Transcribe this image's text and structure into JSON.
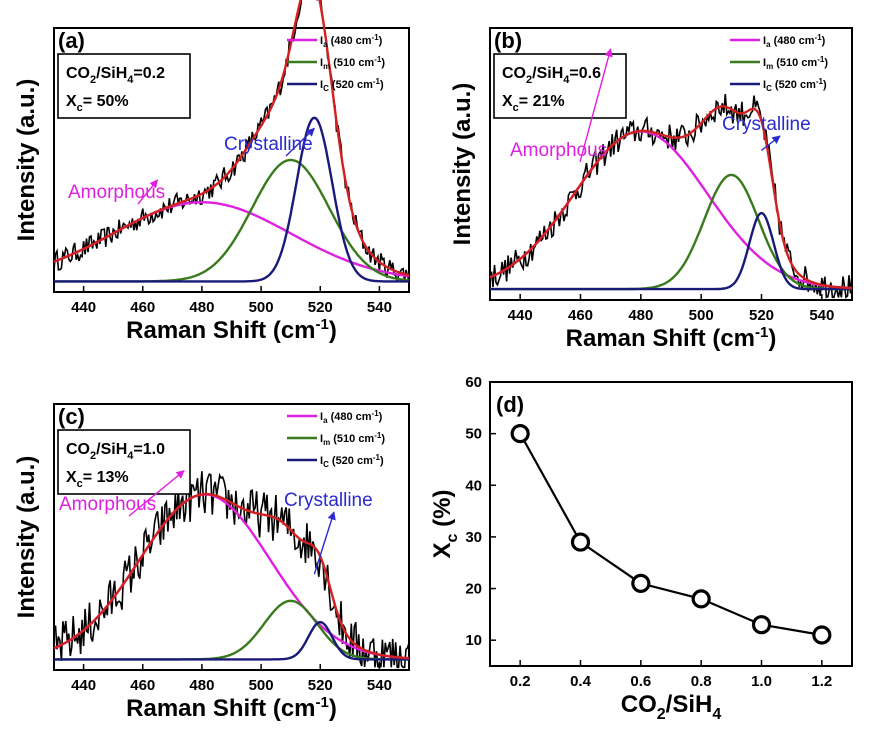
{
  "chart_data": [
    {
      "id": "a",
      "type": "line",
      "panel_label": "(a)",
      "xlabel": "Raman Shift (cm",
      "xlabel_sup": "-1",
      "xlabel_end": ")",
      "ylabel": "Intensity (a.u.)",
      "xlim": [
        430,
        550
      ],
      "xticks": [
        440,
        460,
        480,
        500,
        520,
        540
      ],
      "info": {
        "line1_pre": "CO",
        "line1_sub": "2",
        "line1_mid": "/SiH",
        "line1_sub2": "4",
        "line1_post": "=0.2",
        "line2_pre": "X",
        "line2_sub": "c",
        "line2_post": "= 50%"
      },
      "legend": [
        {
          "label": "I",
          "sub": "a",
          "rest": " (480 cm",
          "sup": "-1",
          "end": ")",
          "color": "#e020e0"
        },
        {
          "label": "I",
          "sub": "m",
          "rest": " (510 cm",
          "sup": "-1",
          "end": ")",
          "color": "#3a7a1e"
        },
        {
          "label": "I",
          "sub": "C",
          "rest": " (520 cm",
          "sup": "-1",
          "end": ")",
          "color": "#1a1a7a"
        }
      ],
      "annotations": {
        "amorphous": "Amorphous",
        "crystalline": "Crystalline"
      },
      "ylim": [
        0,
        100
      ],
      "peaks": {
        "amorphous": {
          "center": 480,
          "height": 30,
          "width": 30
        },
        "intermediate": {
          "center": 510,
          "height": 46,
          "width": 13
        },
        "crystalline": {
          "center": 518,
          "height": 62,
          "width": 6
        }
      },
      "noise": 4
    },
    {
      "id": "b",
      "type": "line",
      "panel_label": "(b)",
      "xlabel": "Raman Shift (cm",
      "xlabel_sup": "-1",
      "xlabel_end": ")",
      "ylabel": "Intensity (a.u.)",
      "xlim": [
        430,
        550
      ],
      "xticks": [
        440,
        460,
        480,
        500,
        520,
        540
      ],
      "info": {
        "line1_pre": "CO",
        "line1_sub": "2",
        "line1_mid": "/SiH",
        "line1_sub2": "4",
        "line1_post": "=0.6",
        "line2_pre": "X",
        "line2_sub": "c",
        "line2_post": "= 21%"
      },
      "legend": [
        {
          "label": "I",
          "sub": "a",
          "rest": " (480 cm",
          "sup": "-1",
          "end": ")",
          "color": "#e020e0"
        },
        {
          "label": "I",
          "sub": "m",
          "rest": " (510 cm",
          "sup": "-1",
          "end": ")",
          "color": "#3a7a1e"
        },
        {
          "label": "I",
          "sub": "C",
          "rest": " (520 cm",
          "sup": "-1",
          "end": ")",
          "color": "#1a1a7a"
        }
      ],
      "annotations": {
        "amorphous": "Amorphous",
        "crystalline": "Crystalline"
      },
      "ylim": [
        0,
        100
      ],
      "peaks": {
        "amorphous": {
          "center": 480,
          "height": 58,
          "width": 22
        },
        "intermediate": {
          "center": 510,
          "height": 42,
          "width": 9
        },
        "crystalline": {
          "center": 520,
          "height": 28,
          "width": 4
        }
      },
      "noise": 5
    },
    {
      "id": "c",
      "type": "line",
      "panel_label": "(c)",
      "xlabel": "Raman Shift (cm",
      "xlabel_sup": "-1",
      "xlabel_end": ")",
      "ylabel": "Intensity (a.u.)",
      "xlim": [
        430,
        550
      ],
      "xticks": [
        440,
        460,
        480,
        500,
        520,
        540
      ],
      "info": {
        "line1_pre": "CO",
        "line1_sub": "2",
        "line1_mid": "/SiH",
        "line1_sub2": "4",
        "line1_post": "=1.0",
        "line2_pre": "X",
        "line2_sub": "c",
        "line2_post": "= 13%"
      },
      "legend": [
        {
          "label": "I",
          "sub": "a",
          "rest": " (480 cm",
          "sup": "-1",
          "end": ")",
          "color": "#e020e0"
        },
        {
          "label": "I",
          "sub": "m",
          "rest": " (510 cm",
          "sup": "-1",
          "end": ")",
          "color": "#3a7a1e"
        },
        {
          "label": "I",
          "sub": "C",
          "rest": " (520 cm",
          "sup": "-1",
          "end": ")",
          "color": "#1a1a7a"
        }
      ],
      "annotations": {
        "amorphous": "Amorphous",
        "crystalline": "Crystalline"
      },
      "ylim": [
        0,
        100
      ],
      "peaks": {
        "amorphous": {
          "center": 481,
          "height": 62,
          "width": 22
        },
        "intermediate": {
          "center": 510,
          "height": 22,
          "width": 9
        },
        "crystalline": {
          "center": 520,
          "height": 14,
          "width": 4
        }
      },
      "noise": 9
    },
    {
      "id": "d",
      "type": "scatter",
      "panel_label": "(d)",
      "xlabel_pre": "CO",
      "xlabel_sub": "2",
      "xlabel_mid": "/SiH",
      "xlabel_sub2": "4",
      "ylabel_pre": "X",
      "ylabel_sub": "c",
      "ylabel_post": " (%)",
      "x": [
        0.2,
        0.4,
        0.6,
        0.8,
        1.0,
        1.2
      ],
      "y": [
        50,
        29,
        21,
        18,
        13,
        11
      ],
      "xlim": [
        0.1,
        1.3
      ],
      "ylim": [
        5,
        60
      ],
      "xticks": [
        "0.2",
        "0.4",
        "0.6",
        "0.8",
        "1.0",
        "1.2"
      ],
      "yticks": [
        "10",
        "20",
        "30",
        "40",
        "50",
        "60"
      ]
    }
  ]
}
